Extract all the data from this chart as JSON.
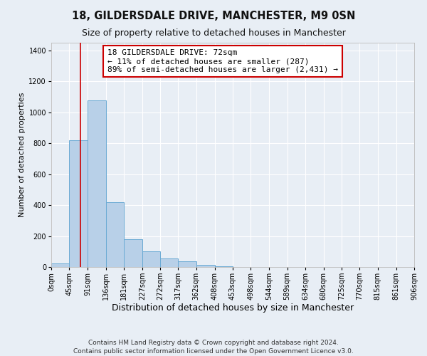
{
  "title": "18, GILDERSDALE DRIVE, MANCHESTER, M9 0SN",
  "subtitle": "Size of property relative to detached houses in Manchester",
  "xlabel": "Distribution of detached houses by size in Manchester",
  "ylabel": "Number of detached properties",
  "bar_color": "#b8d0e8",
  "bar_edge_color": "#6aaad4",
  "bg_color": "#e8eef5",
  "grid_color": "#ffffff",
  "vline_x": 72,
  "vline_color": "#cc0000",
  "bin_edges": [
    0,
    45,
    91,
    136,
    181,
    227,
    272,
    317,
    362,
    408,
    453,
    498,
    544,
    589,
    634,
    680,
    725,
    770,
    815,
    861,
    906
  ],
  "bin_labels": [
    "0sqm",
    "45sqm",
    "91sqm",
    "136sqm",
    "181sqm",
    "227sqm",
    "272sqm",
    "317sqm",
    "362sqm",
    "408sqm",
    "453sqm",
    "498sqm",
    "544sqm",
    "589sqm",
    "634sqm",
    "680sqm",
    "725sqm",
    "770sqm",
    "815sqm",
    "861sqm",
    "906sqm"
  ],
  "bar_heights": [
    25,
    820,
    1075,
    420,
    180,
    100,
    57,
    38,
    15,
    5,
    0,
    0,
    0,
    0,
    0,
    0,
    0,
    0,
    0,
    0
  ],
  "ylim": [
    0,
    1450
  ],
  "yticks": [
    0,
    200,
    400,
    600,
    800,
    1000,
    1200,
    1400
  ],
  "annotation_line1": "18 GILDERSDALE DRIVE: 72sqm",
  "annotation_line2": "← 11% of detached houses are smaller (287)",
  "annotation_line3": "89% of semi-detached houses are larger (2,431) →",
  "annotation_box_color": "#ffffff",
  "annotation_box_edge": "#cc0000",
  "footer_line1": "Contains HM Land Registry data © Crown copyright and database right 2024.",
  "footer_line2": "Contains public sector information licensed under the Open Government Licence v3.0.",
  "title_fontsize": 10.5,
  "subtitle_fontsize": 9,
  "xlabel_fontsize": 9,
  "ylabel_fontsize": 8,
  "tick_fontsize": 7,
  "annotation_fontsize": 8,
  "footer_fontsize": 6.5
}
